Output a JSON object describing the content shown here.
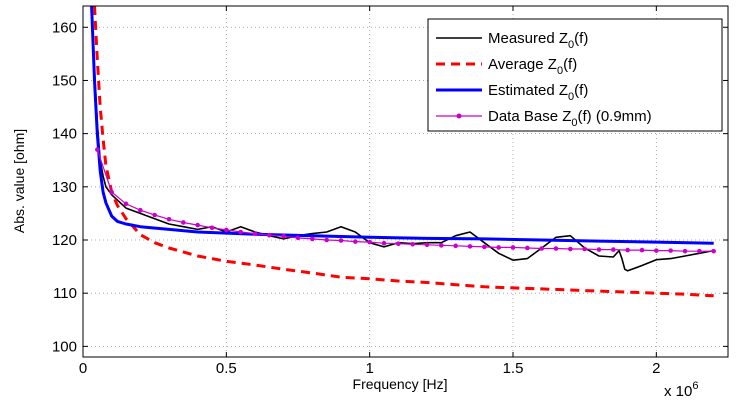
{
  "chart_data": {
    "type": "line",
    "title": "",
    "xlabel": "Frequency [Hz]",
    "ylabel": "Abs. value [ohm]",
    "x_exponent_label": "x 10",
    "x_exponent": "6",
    "x_scale": 1000000,
    "xlim": [
      0,
      2.25
    ],
    "ylim": [
      98,
      164
    ],
    "grid": true,
    "legend_position": "top-right",
    "x_ticks": [
      {
        "value": 0,
        "label": "0"
      },
      {
        "value": 0.5,
        "label": "0.5"
      },
      {
        "value": 1,
        "label": "1"
      },
      {
        "value": 1.5,
        "label": "1.5"
      },
      {
        "value": 2,
        "label": "2"
      }
    ],
    "y_ticks": [
      {
        "value": 100,
        "label": "100"
      },
      {
        "value": 110,
        "label": "110"
      },
      {
        "value": 120,
        "label": "120"
      },
      {
        "value": 130,
        "label": "130"
      },
      {
        "value": 140,
        "label": "140"
      },
      {
        "value": 150,
        "label": "150"
      },
      {
        "value": 160,
        "label": "160"
      }
    ],
    "series": [
      {
        "name": "Measured Z",
        "name_sub": "0",
        "name_suffix": "(f)",
        "color": "#000000",
        "style": "solid",
        "x": [
          0.03,
          0.04,
          0.05,
          0.06,
          0.07,
          0.08,
          0.1,
          0.12,
          0.15,
          0.2,
          0.25,
          0.3,
          0.35,
          0.4,
          0.45,
          0.5,
          0.55,
          0.6,
          0.65,
          0.7,
          0.75,
          0.8,
          0.85,
          0.9,
          0.95,
          1.0,
          1.05,
          1.1,
          1.15,
          1.2,
          1.25,
          1.3,
          1.35,
          1.4,
          1.45,
          1.5,
          1.55,
          1.6,
          1.65,
          1.7,
          1.75,
          1.8,
          1.85,
          1.87,
          1.88,
          1.89,
          1.9,
          1.95,
          2.0,
          2.05,
          2.1,
          2.15,
          2.2
        ],
        "y": [
          163,
          152,
          142,
          135,
          132,
          130,
          128.5,
          127.5,
          126,
          125,
          124,
          123,
          122.5,
          122,
          122.5,
          121.5,
          122.5,
          121.5,
          120.8,
          120.2,
          120.8,
          121.2,
          121.5,
          122.5,
          121.5,
          119.5,
          118.7,
          119.5,
          119.3,
          119.5,
          119.5,
          120.8,
          121.5,
          119.5,
          117.5,
          116.2,
          116.5,
          118.5,
          120.5,
          120.8,
          118.5,
          117,
          116.8,
          118,
          116.5,
          114.5,
          114.2,
          115.2,
          116.3,
          116.5,
          117,
          117.5,
          118
        ]
      },
      {
        "name": "Average Z",
        "name_sub": "0",
        "name_suffix": "(f)",
        "color": "#ff0000",
        "style": "dashed",
        "x": [
          0.04,
          0.05,
          0.06,
          0.07,
          0.08,
          0.1,
          0.12,
          0.15,
          0.2,
          0.25,
          0.3,
          0.4,
          0.5,
          0.6,
          0.7,
          0.8,
          0.9,
          1.0,
          1.1,
          1.2,
          1.3,
          1.4,
          1.5,
          1.6,
          1.7,
          1.8,
          1.9,
          2.0,
          2.1,
          2.2
        ],
        "y": [
          164,
          154,
          145,
          139,
          134,
          129,
          126.5,
          124,
          121,
          119.5,
          118.5,
          117,
          116,
          115.3,
          114.5,
          113.8,
          113,
          112.7,
          112.3,
          112,
          111.6,
          111.2,
          111,
          110.8,
          110.6,
          110.4,
          110.2,
          110,
          109.8,
          109.5
        ]
      },
      {
        "name": "Estimated Z",
        "name_sub": "0",
        "name_suffix": "(f)",
        "color": "#0000ff",
        "style": "solid",
        "x": [
          0.03,
          0.04,
          0.05,
          0.06,
          0.07,
          0.08,
          0.1,
          0.12,
          0.15,
          0.2,
          0.3,
          0.4,
          0.5,
          0.6,
          0.8,
          1.0,
          1.2,
          1.4,
          1.6,
          1.8,
          2.0,
          2.2
        ],
        "y": [
          164,
          150,
          140,
          133,
          129,
          127,
          124.5,
          123.5,
          123,
          122.5,
          122,
          121.5,
          121.3,
          121.1,
          120.8,
          120.5,
          120.3,
          120.2,
          120,
          119.8,
          119.6,
          119.4
        ]
      },
      {
        "name": "Data Base Z",
        "name_sub": "0",
        "name_suffix": "(f) (0.9mm)",
        "color": "#cc00cc",
        "style": "solid-dot",
        "x": [
          0.05,
          0.1,
          0.15,
          0.2,
          0.25,
          0.3,
          0.35,
          0.4,
          0.45,
          0.5,
          0.55,
          0.6,
          0.65,
          0.7,
          0.75,
          0.8,
          0.85,
          0.9,
          0.95,
          1.0,
          1.05,
          1.1,
          1.15,
          1.2,
          1.25,
          1.3,
          1.35,
          1.4,
          1.45,
          1.5,
          1.55,
          1.6,
          1.65,
          1.7,
          1.75,
          1.8,
          1.85,
          1.9,
          1.95,
          2.0,
          2.05,
          2.1,
          2.15,
          2.2
        ],
        "y": [
          137,
          129,
          126.8,
          125.6,
          124.7,
          123.9,
          123.3,
          122.8,
          122.3,
          121.9,
          121.5,
          121.2,
          120.9,
          120.7,
          120.4,
          120.2,
          120,
          119.9,
          119.7,
          119.6,
          119.4,
          119.3,
          119.2,
          119.1,
          119,
          118.9,
          118.8,
          118.7,
          118.6,
          118.6,
          118.5,
          118.4,
          118.4,
          118.3,
          118.3,
          118.2,
          118.2,
          118.1,
          118.1,
          118,
          118,
          117.9,
          117.9,
          117.9
        ]
      }
    ]
  }
}
